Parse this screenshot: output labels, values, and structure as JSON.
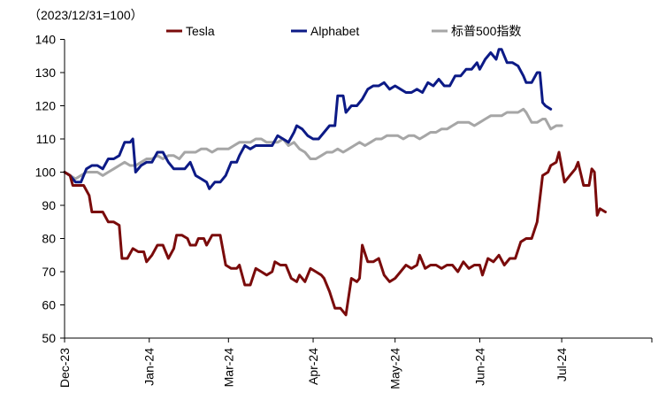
{
  "chart_data": {
    "type": "line",
    "title": "",
    "note": "（2023/12/31=100）",
    "xlabel": "",
    "ylabel": "",
    "ylim": [
      50,
      145
    ],
    "yticks": [
      50,
      60,
      70,
      80,
      90,
      100,
      110,
      120,
      130,
      140
    ],
    "x_range_days": [
      0,
      215
    ],
    "xticks": [
      {
        "label": "Dec-23",
        "day": 0
      },
      {
        "label": "Jan-24",
        "day": 31
      },
      {
        "label": "Mar-24",
        "day": 60
      },
      {
        "label": "Apr-24",
        "day": 91
      },
      {
        "label": "May-24",
        "day": 121
      },
      {
        "label": "Jun-24",
        "day": 152
      },
      {
        "label": "Jul-24",
        "day": 182
      }
    ],
    "grid": false,
    "legend": "top",
    "series": [
      {
        "name": "Tesla",
        "color": "#7a0b0b",
        "points": [
          [
            0,
            100
          ],
          [
            2,
            99
          ],
          [
            3,
            96
          ],
          [
            5,
            96
          ],
          [
            7,
            96
          ],
          [
            9,
            93
          ],
          [
            10,
            88
          ],
          [
            12,
            88
          ],
          [
            14,
            88
          ],
          [
            16,
            85
          ],
          [
            18,
            85
          ],
          [
            20,
            84
          ],
          [
            21,
            74
          ],
          [
            23,
            74
          ],
          [
            25,
            77
          ],
          [
            27,
            76
          ],
          [
            29,
            76
          ],
          [
            30,
            73
          ],
          [
            32,
            75
          ],
          [
            34,
            78
          ],
          [
            36,
            78
          ],
          [
            38,
            74
          ],
          [
            40,
            77
          ],
          [
            41,
            81
          ],
          [
            43,
            81
          ],
          [
            45,
            80
          ],
          [
            46,
            78
          ],
          [
            48,
            78
          ],
          [
            49,
            80
          ],
          [
            51,
            80
          ],
          [
            52,
            78
          ],
          [
            54,
            81
          ],
          [
            56,
            81
          ],
          [
            57,
            81
          ],
          [
            59,
            72
          ],
          [
            61,
            71
          ],
          [
            63,
            71
          ],
          [
            64,
            72
          ],
          [
            66,
            66
          ],
          [
            68,
            66
          ],
          [
            70,
            71
          ],
          [
            72,
            70
          ],
          [
            74,
            69
          ],
          [
            76,
            70
          ],
          [
            77,
            73
          ],
          [
            79,
            72
          ],
          [
            81,
            72
          ],
          [
            83,
            68
          ],
          [
            85,
            67
          ],
          [
            86,
            69
          ],
          [
            88,
            67
          ],
          [
            90,
            71
          ],
          [
            92,
            70
          ],
          [
            94,
            69
          ],
          [
            95,
            68
          ],
          [
            97,
            64
          ],
          [
            99,
            59
          ],
          [
            101,
            59
          ],
          [
            103,
            57
          ],
          [
            105,
            68
          ],
          [
            107,
            67
          ],
          [
            108,
            68
          ],
          [
            109,
            78
          ],
          [
            111,
            73
          ],
          [
            113,
            73
          ],
          [
            115,
            74
          ],
          [
            117,
            69
          ],
          [
            119,
            67
          ],
          [
            121,
            68
          ],
          [
            123,
            70
          ],
          [
            125,
            72
          ],
          [
            127,
            71
          ],
          [
            129,
            72
          ],
          [
            130,
            75
          ],
          [
            132,
            71
          ],
          [
            134,
            72
          ],
          [
            136,
            72
          ],
          [
            138,
            71
          ],
          [
            140,
            72
          ],
          [
            142,
            72
          ],
          [
            144,
            70
          ],
          [
            146,
            73
          ],
          [
            148,
            71
          ],
          [
            150,
            72
          ],
          [
            152,
            72
          ],
          [
            153,
            69
          ],
          [
            155,
            74
          ],
          [
            157,
            73
          ],
          [
            159,
            75
          ],
          [
            161,
            72
          ],
          [
            163,
            74
          ],
          [
            165,
            74
          ],
          [
            167,
            79
          ],
          [
            169,
            80
          ],
          [
            171,
            80
          ],
          [
            173,
            85
          ],
          [
            175,
            99
          ],
          [
            177,
            100
          ],
          [
            178,
            102
          ],
          [
            180,
            103
          ],
          [
            181,
            106
          ],
          [
            183,
            97
          ],
          [
            185,
            99
          ],
          [
            187,
            101
          ],
          [
            188,
            103
          ],
          [
            190,
            96
          ],
          [
            192,
            96
          ],
          [
            193,
            101
          ],
          [
            194,
            100
          ],
          [
            195,
            87
          ],
          [
            196,
            89
          ],
          [
            198,
            88
          ]
        ]
      },
      {
        "name": "Alphabet",
        "color": "#0c1a86",
        "points": [
          [
            0,
            100
          ],
          [
            2,
            99
          ],
          [
            4,
            97
          ],
          [
            6,
            97
          ],
          [
            8,
            101
          ],
          [
            10,
            102
          ],
          [
            12,
            102
          ],
          [
            14,
            101
          ],
          [
            16,
            104
          ],
          [
            18,
            104
          ],
          [
            20,
            105
          ],
          [
            22,
            109
          ],
          [
            24,
            109
          ],
          [
            25,
            110
          ],
          [
            26,
            100
          ],
          [
            28,
            102
          ],
          [
            30,
            103
          ],
          [
            32,
            103
          ],
          [
            34,
            106
          ],
          [
            36,
            106
          ],
          [
            38,
            103
          ],
          [
            40,
            101
          ],
          [
            42,
            101
          ],
          [
            44,
            101
          ],
          [
            46,
            103
          ],
          [
            48,
            99
          ],
          [
            50,
            98
          ],
          [
            52,
            97
          ],
          [
            53,
            95
          ],
          [
            55,
            97
          ],
          [
            57,
            97
          ],
          [
            59,
            99
          ],
          [
            61,
            103
          ],
          [
            63,
            103
          ],
          [
            64,
            105
          ],
          [
            66,
            108
          ],
          [
            68,
            107
          ],
          [
            70,
            108
          ],
          [
            72,
            108
          ],
          [
            74,
            108
          ],
          [
            76,
            108
          ],
          [
            78,
            111
          ],
          [
            80,
            110
          ],
          [
            82,
            109
          ],
          [
            84,
            112
          ],
          [
            85,
            114
          ],
          [
            87,
            113
          ],
          [
            89,
            111
          ],
          [
            91,
            110
          ],
          [
            93,
            110
          ],
          [
            95,
            112
          ],
          [
            97,
            114
          ],
          [
            99,
            114
          ],
          [
            100,
            123
          ],
          [
            102,
            123
          ],
          [
            103,
            118
          ],
          [
            105,
            120
          ],
          [
            107,
            120
          ],
          [
            109,
            122
          ],
          [
            111,
            125
          ],
          [
            113,
            126
          ],
          [
            115,
            126
          ],
          [
            117,
            127
          ],
          [
            119,
            125
          ],
          [
            121,
            126
          ],
          [
            123,
            125
          ],
          [
            125,
            124
          ],
          [
            127,
            124
          ],
          [
            129,
            125
          ],
          [
            131,
            124
          ],
          [
            133,
            127
          ],
          [
            135,
            126
          ],
          [
            137,
            128
          ],
          [
            139,
            126
          ],
          [
            141,
            126
          ],
          [
            143,
            129
          ],
          [
            145,
            129
          ],
          [
            147,
            131
          ],
          [
            149,
            131
          ],
          [
            151,
            133
          ],
          [
            152,
            131
          ],
          [
            154,
            134
          ],
          [
            156,
            136
          ],
          [
            158,
            134
          ],
          [
            159,
            137
          ],
          [
            160,
            137
          ],
          [
            162,
            133
          ],
          [
            164,
            133
          ],
          [
            166,
            132
          ],
          [
            168,
            129
          ],
          [
            169,
            127
          ],
          [
            171,
            127
          ],
          [
            173,
            130
          ],
          [
            174,
            130
          ],
          [
            175,
            121
          ],
          [
            176,
            120
          ],
          [
            178,
            119
          ]
        ]
      },
      {
        "name": "标普500指数",
        "color": "#a6a6a6",
        "points": [
          [
            0,
            100
          ],
          [
            2,
            99
          ],
          [
            4,
            98
          ],
          [
            6,
            99
          ],
          [
            8,
            100
          ],
          [
            10,
            100
          ],
          [
            12,
            100
          ],
          [
            14,
            99
          ],
          [
            16,
            100
          ],
          [
            18,
            101
          ],
          [
            20,
            102
          ],
          [
            22,
            103
          ],
          [
            24,
            102
          ],
          [
            26,
            102
          ],
          [
            28,
            103
          ],
          [
            30,
            104
          ],
          [
            32,
            104
          ],
          [
            34,
            105
          ],
          [
            36,
            104
          ],
          [
            38,
            105
          ],
          [
            40,
            105
          ],
          [
            42,
            104
          ],
          [
            44,
            106
          ],
          [
            46,
            106
          ],
          [
            48,
            106
          ],
          [
            50,
            107
          ],
          [
            52,
            107
          ],
          [
            54,
            106
          ],
          [
            56,
            107
          ],
          [
            58,
            107
          ],
          [
            60,
            107
          ],
          [
            62,
            108
          ],
          [
            64,
            109
          ],
          [
            66,
            109
          ],
          [
            68,
            109
          ],
          [
            70,
            110
          ],
          [
            72,
            110
          ],
          [
            74,
            109
          ],
          [
            76,
            109
          ],
          [
            78,
            109
          ],
          [
            80,
            110
          ],
          [
            82,
            108
          ],
          [
            84,
            109
          ],
          [
            86,
            107
          ],
          [
            88,
            106
          ],
          [
            90,
            104
          ],
          [
            92,
            104
          ],
          [
            94,
            105
          ],
          [
            96,
            106
          ],
          [
            98,
            106
          ],
          [
            100,
            107
          ],
          [
            102,
            106
          ],
          [
            104,
            107
          ],
          [
            106,
            108
          ],
          [
            108,
            109
          ],
          [
            110,
            108
          ],
          [
            112,
            109
          ],
          [
            114,
            110
          ],
          [
            116,
            110
          ],
          [
            118,
            111
          ],
          [
            120,
            111
          ],
          [
            122,
            111
          ],
          [
            124,
            110
          ],
          [
            126,
            111
          ],
          [
            128,
            111
          ],
          [
            130,
            110
          ],
          [
            132,
            111
          ],
          [
            134,
            112
          ],
          [
            136,
            112
          ],
          [
            138,
            113
          ],
          [
            140,
            113
          ],
          [
            142,
            114
          ],
          [
            144,
            115
          ],
          [
            146,
            115
          ],
          [
            148,
            115
          ],
          [
            150,
            114
          ],
          [
            152,
            115
          ],
          [
            154,
            116
          ],
          [
            156,
            117
          ],
          [
            158,
            117
          ],
          [
            160,
            117
          ],
          [
            162,
            118
          ],
          [
            164,
            118
          ],
          [
            166,
            118
          ],
          [
            168,
            119
          ],
          [
            169,
            118
          ],
          [
            171,
            115
          ],
          [
            173,
            115
          ],
          [
            175,
            116
          ],
          [
            176,
            116
          ],
          [
            178,
            113
          ],
          [
            180,
            114
          ],
          [
            182,
            114
          ]
        ]
      }
    ]
  }
}
